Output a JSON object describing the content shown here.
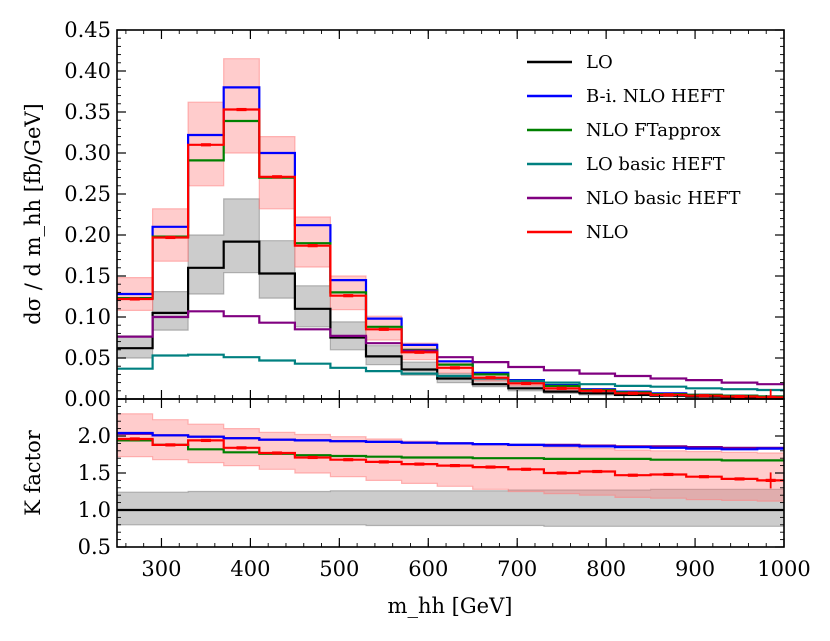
{
  "chart_data": [
    {
      "type": "step",
      "panel": "main",
      "ylabel": "dσ / d m_hh [fb/GeV]",
      "xlim": [
        250,
        1000
      ],
      "ylim": [
        0,
        0.45
      ],
      "x_ticks": [
        "300",
        "400",
        "500",
        "600",
        "700",
        "800",
        "900",
        "1000"
      ],
      "y_ticks": [
        "0.00",
        "0.05",
        "0.10",
        "0.15",
        "0.20",
        "0.25",
        "0.30",
        "0.35",
        "0.40",
        "0.45"
      ],
      "bin_edges": [
        250,
        290,
        330,
        370,
        410,
        450,
        490,
        530,
        570,
        610,
        650,
        690,
        730,
        770,
        810,
        850,
        890,
        930,
        970,
        1000
      ],
      "legend": {
        "position": "top-right"
      },
      "series": [
        {
          "name": "LO",
          "color": "#000000",
          "values": [
            0.062,
            0.105,
            0.16,
            0.192,
            0.153,
            0.11,
            0.075,
            0.052,
            0.036,
            0.025,
            0.018,
            0.013,
            0.009,
            0.007,
            0.005,
            0.004,
            0.003,
            0.002,
            0.002
          ]
        },
        {
          "name": "B-i. NLO HEFT",
          "color": "#0000ff",
          "values": [
            0.128,
            0.21,
            0.322,
            0.38,
            0.3,
            0.212,
            0.145,
            0.098,
            0.066,
            0.046,
            0.032,
            0.023,
            0.017,
            0.012,
            0.009,
            0.007,
            0.005,
            0.004,
            0.003
          ]
        },
        {
          "name": "NLO FTapprox",
          "color": "#008000",
          "values": [
            0.123,
            0.198,
            0.291,
            0.339,
            0.27,
            0.19,
            0.13,
            0.088,
            0.06,
            0.042,
            0.03,
            0.022,
            0.016,
            0.011,
            0.008,
            0.006,
            0.005,
            0.004,
            0.003
          ]
        },
        {
          "name": "LO basic HEFT",
          "color": "#008080",
          "values": [
            0.037,
            0.053,
            0.054,
            0.051,
            0.047,
            0.043,
            0.038,
            0.034,
            0.031,
            0.028,
            0.025,
            0.022,
            0.02,
            0.018,
            0.016,
            0.015,
            0.013,
            0.012,
            0.011
          ]
        },
        {
          "name": "NLO basic HEFT",
          "color": "#800080",
          "values": [
            0.076,
            0.1,
            0.107,
            0.101,
            0.093,
            0.085,
            0.077,
            0.068,
            0.059,
            0.051,
            0.045,
            0.039,
            0.035,
            0.031,
            0.028,
            0.025,
            0.023,
            0.02,
            0.018
          ]
        },
        {
          "name": "NLO",
          "color": "#ff0000",
          "values": [
            0.122,
            0.197,
            0.31,
            0.353,
            0.271,
            0.187,
            0.126,
            0.085,
            0.057,
            0.038,
            0.026,
            0.019,
            0.013,
            0.01,
            0.007,
            0.005,
            0.004,
            0.003,
            0.002
          ]
        }
      ],
      "bands": [
        {
          "name": "LO scale uncertainty",
          "color": "#808080",
          "lower": [
            0.05,
            0.084,
            0.128,
            0.154,
            0.123,
            0.088,
            0.06,
            0.042,
            0.029,
            0.02,
            0.015,
            0.01,
            0.007,
            0.005,
            0.004,
            0.003,
            0.002,
            0.002,
            0.001
          ],
          "upper": [
            0.077,
            0.131,
            0.2,
            0.244,
            0.193,
            0.138,
            0.094,
            0.065,
            0.045,
            0.031,
            0.023,
            0.016,
            0.011,
            0.009,
            0.006,
            0.005,
            0.004,
            0.003,
            0.002
          ]
        },
        {
          "name": "NLO scale uncertainty",
          "color": "#ff8080",
          "lower": [
            0.108,
            0.168,
            0.26,
            0.3,
            0.232,
            0.161,
            0.109,
            0.072,
            0.048,
            0.032,
            0.022,
            0.016,
            0.011,
            0.008,
            0.006,
            0.004,
            0.003,
            0.002,
            0.002
          ],
          "upper": [
            0.148,
            0.232,
            0.362,
            0.415,
            0.32,
            0.222,
            0.15,
            0.101,
            0.068,
            0.046,
            0.031,
            0.023,
            0.016,
            0.012,
            0.008,
            0.006,
            0.005,
            0.004,
            0.003
          ]
        }
      ]
    },
    {
      "type": "step",
      "panel": "ratio",
      "xlabel": "m_hh [GeV]",
      "ylabel": "K factor",
      "xlim": [
        250,
        1000
      ],
      "ylim": [
        0.5,
        2.5
      ],
      "x_ticks": [
        "300",
        "400",
        "500",
        "600",
        "700",
        "800",
        "900",
        "1000"
      ],
      "y_ticks": [
        "0.5",
        "1.0",
        "1.5",
        "2.0"
      ],
      "bin_edges": [
        250,
        290,
        330,
        370,
        410,
        450,
        490,
        530,
        570,
        610,
        650,
        690,
        730,
        770,
        810,
        850,
        890,
        930,
        970,
        1000
      ],
      "series": [
        {
          "name": "LO",
          "color": "#000000",
          "values": [
            1.0,
            1.0,
            1.0,
            1.0,
            1.0,
            1.0,
            1.0,
            1.0,
            1.0,
            1.0,
            1.0,
            1.0,
            1.0,
            1.0,
            1.0,
            1.0,
            1.0,
            1.0,
            1.0
          ]
        },
        {
          "name": "NLO FTapprox",
          "color": "#008000",
          "values": [
            1.94,
            1.88,
            1.82,
            1.78,
            1.76,
            1.74,
            1.73,
            1.72,
            1.71,
            1.71,
            1.7,
            1.7,
            1.69,
            1.69,
            1.69,
            1.68,
            1.68,
            1.67,
            1.67
          ]
        },
        {
          "name": "NLO basic HEFT",
          "color": "#800080",
          "values": [
            2.03,
            2.01,
            1.99,
            1.97,
            1.95,
            1.94,
            1.93,
            1.92,
            1.91,
            1.9,
            1.89,
            1.88,
            1.88,
            1.87,
            1.86,
            1.86,
            1.85,
            1.84,
            1.84
          ]
        },
        {
          "name": "B-i. NLO HEFT",
          "color": "#0000ff",
          "values": [
            2.04,
            2.01,
            1.99,
            1.97,
            1.95,
            1.94,
            1.93,
            1.92,
            1.91,
            1.9,
            1.89,
            1.88,
            1.87,
            1.86,
            1.85,
            1.84,
            1.83,
            1.82,
            1.83
          ]
        },
        {
          "name": "NLO",
          "color": "#ff0000",
          "values": [
            1.96,
            1.88,
            1.94,
            1.84,
            1.77,
            1.71,
            1.68,
            1.65,
            1.62,
            1.6,
            1.58,
            1.55,
            1.5,
            1.52,
            1.47,
            1.48,
            1.45,
            1.42,
            1.4
          ]
        }
      ],
      "bands": [
        {
          "name": "LO scale uncertainty",
          "color": "#808080",
          "lower": [
            0.8,
            0.8,
            0.8,
            0.8,
            0.8,
            0.8,
            0.8,
            0.79,
            0.79,
            0.79,
            0.79,
            0.79,
            0.78,
            0.78,
            0.78,
            0.78,
            0.78,
            0.78,
            0.78
          ],
          "upper": [
            1.24,
            1.24,
            1.25,
            1.25,
            1.25,
            1.25,
            1.26,
            1.26,
            1.26,
            1.26,
            1.26,
            1.27,
            1.27,
            1.27,
            1.27,
            1.28,
            1.28,
            1.28,
            1.28
          ]
        },
        {
          "name": "NLO scale uncertainty",
          "color": "#ff8080",
          "lower": [
            1.72,
            1.68,
            1.64,
            1.6,
            1.55,
            1.5,
            1.45,
            1.4,
            1.36,
            1.32,
            1.28,
            1.25,
            1.22,
            1.2,
            1.17,
            1.16,
            1.14,
            1.13,
            1.12
          ],
          "upper": [
            2.3,
            2.22,
            2.16,
            2.1,
            2.05,
            2.02,
            1.99,
            1.96,
            1.93,
            1.91,
            1.89,
            1.87,
            1.85,
            1.83,
            1.81,
            1.8,
            1.79,
            1.78,
            1.77
          ]
        }
      ]
    }
  ]
}
